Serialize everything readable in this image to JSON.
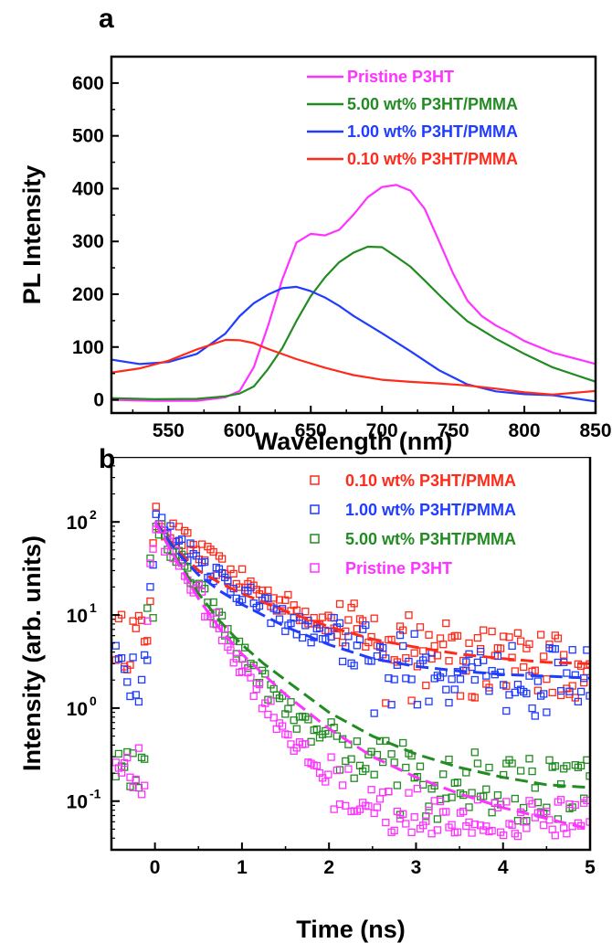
{
  "chart_data": [
    {
      "panel": "a",
      "type": "line",
      "title": "",
      "xlabel": "Wavelength (nm)",
      "ylabel": "PL Intensity",
      "xlim": [
        510,
        850
      ],
      "ylim": [
        -25,
        650
      ],
      "xticks": [
        550,
        600,
        650,
        700,
        750,
        800,
        850
      ],
      "yticks": [
        0,
        100,
        200,
        300,
        400,
        500,
        600
      ],
      "grid": false,
      "legend_position": "top-right",
      "series": [
        {
          "name": "Pristine P3HT",
          "color": "#ff33ff",
          "x": [
            510,
            540,
            570,
            590,
            600,
            610,
            620,
            630,
            640,
            650,
            660,
            670,
            680,
            690,
            700,
            710,
            720,
            730,
            740,
            750,
            760,
            770,
            780,
            790,
            800,
            820,
            850
          ],
          "y": [
            0,
            0,
            0,
            5,
            15,
            60,
            140,
            230,
            300,
            315,
            310,
            320,
            350,
            385,
            405,
            408,
            395,
            360,
            300,
            240,
            190,
            160,
            140,
            125,
            110,
            90,
            70
          ]
        },
        {
          "name": "5.00 wt% P3HT/PMMA",
          "color": "#228b22",
          "x": [
            510,
            540,
            570,
            590,
            600,
            610,
            620,
            630,
            640,
            650,
            660,
            670,
            680,
            690,
            700,
            710,
            720,
            730,
            740,
            750,
            760,
            780,
            800,
            820,
            850
          ],
          "y": [
            5,
            3,
            2,
            5,
            10,
            25,
            60,
            100,
            150,
            195,
            230,
            260,
            280,
            292,
            290,
            270,
            250,
            225,
            200,
            175,
            150,
            115,
            85,
            60,
            35
          ]
        },
        {
          "name": "1.00 wt% P3HT/PMMA",
          "color": "#1f3cff",
          "x": [
            510,
            530,
            550,
            570,
            590,
            600,
            610,
            620,
            630,
            640,
            650,
            660,
            670,
            680,
            700,
            720,
            740,
            760,
            780,
            800,
            820,
            850
          ],
          "y": [
            78,
            68,
            70,
            85,
            125,
            160,
            185,
            200,
            210,
            212,
            205,
            195,
            180,
            160,
            125,
            90,
            55,
            30,
            18,
            12,
            8,
            -5
          ]
        },
        {
          "name": "0.10 wt% P3HT/PMMA",
          "color": "#ff2a1a",
          "x": [
            510,
            530,
            550,
            570,
            590,
            600,
            610,
            620,
            640,
            660,
            680,
            700,
            720,
            740,
            760,
            780,
            800,
            820,
            850
          ],
          "y": [
            52,
            58,
            72,
            95,
            115,
            115,
            108,
            95,
            75,
            60,
            48,
            40,
            35,
            30,
            25,
            20,
            15,
            12,
            18
          ]
        }
      ]
    },
    {
      "panel": "b",
      "type": "scatter",
      "title": "",
      "xlabel": "Time (ns)",
      "ylabel": "Intensity (arb. units)",
      "xlim": [
        -0.5,
        5
      ],
      "ylim": [
        0.03,
        500
      ],
      "y_scale": "log",
      "xticks": [
        0,
        1,
        2,
        3,
        4,
        5
      ],
      "yticks": [
        0.1,
        1,
        10,
        100
      ],
      "ytick_labels": [
        "10",
        "10",
        "10",
        "10"
      ],
      "ytick_exponents": [
        "-1",
        "0",
        "1",
        "2"
      ],
      "grid": false,
      "legend_position": "top-right",
      "fit_lines": "dashed",
      "series": [
        {
          "name": "0.10 wt% P3HT/PMMA",
          "color": "#ff2a1a",
          "baseline": 5.0,
          "tau1": 0.5,
          "amp1": 95,
          "tail": 2.8,
          "tau_tail": 1.6,
          "noise_low": 1.4,
          "fit": {
            "x": [
              0,
              0.25,
              0.5,
              0.75,
              1,
              1.5,
              2,
              2.5,
              3,
              3.5,
              4,
              4.5,
              5
            ],
            "y": [
              100,
              50,
              30,
              22,
              17,
              11,
              7.5,
              5.5,
              4.5,
              3.8,
              3.4,
              3.1,
              3.0
            ]
          }
        },
        {
          "name": "1.00 wt% P3HT/PMMA",
          "color": "#1f3cff",
          "baseline": 2.3,
          "tau1": 0.45,
          "amp1": 95,
          "tail": 2.0,
          "tau_tail": 1.4,
          "noise_low": 1.0,
          "fit": {
            "x": [
              0,
              0.25,
              0.5,
              0.75,
              1,
              1.5,
              2,
              2.5,
              3,
              3.5,
              4,
              4.5,
              5
            ],
            "y": [
              100,
              48,
              27,
              18,
              13,
              7.5,
              4.8,
              3.4,
              2.8,
              2.5,
              2.3,
              2.2,
              2.1
            ]
          }
        },
        {
          "name": "5.00 wt% P3HT/PMMA",
          "color": "#228b22",
          "baseline": 0.12,
          "tau1": 0.3,
          "amp1": 95,
          "tail": 0.14,
          "tau_tail": 1.3,
          "noise_low": 0.07,
          "fit": {
            "x": [
              0,
              0.25,
              0.5,
              0.75,
              1,
              1.25,
              1.5,
              2,
              2.5,
              3,
              3.5,
              4,
              4.5,
              5
            ],
            "y": [
              100,
              40,
              17,
              8.5,
              4.8,
              3.0,
              2.0,
              0.9,
              0.5,
              0.32,
              0.23,
              0.18,
              0.15,
              0.14
            ]
          }
        },
        {
          "name": "Pristine P3HT",
          "color": "#ff33ff",
          "baseline": 0.05,
          "tau1": 0.28,
          "amp1": 95,
          "tail": 0.05,
          "tau_tail": 1.2,
          "noise_low": 0.06,
          "fit": {
            "x": [
              0,
              0.25,
              0.5,
              0.75,
              1,
              1.25,
              1.5,
              2,
              2.5,
              3,
              3.5,
              4,
              4.5,
              5
            ],
            "y": [
              100,
              38,
              15,
              7,
              3.8,
              2.3,
              1.4,
              0.6,
              0.3,
              0.18,
              0.12,
              0.085,
              0.065,
              0.05
            ]
          }
        }
      ]
    }
  ],
  "panels": {
    "a": "a",
    "b": "b"
  }
}
